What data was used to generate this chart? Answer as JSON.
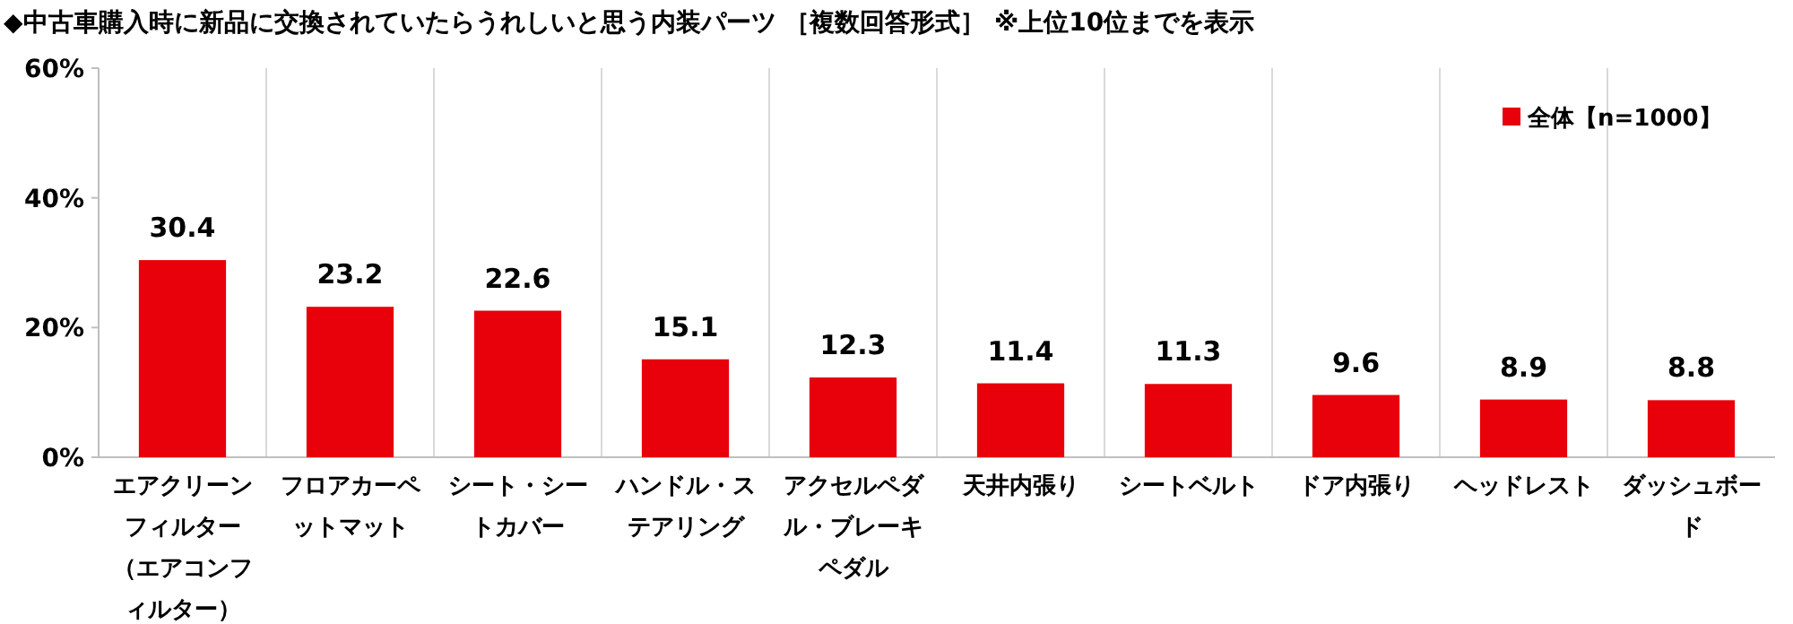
{
  "chart_data": {
    "type": "bar",
    "title": "◆中古車購入時に新品に交換されていたらうれしいと思う内装パーツ ［複数回答形式］ ※上位10位までを表示",
    "categories": [
      "エアクリーンフィルター（エアコンフィルター）",
      "フロアカーペットマット",
      "シート・シートカバー",
      "ハンドル・ステアリング",
      "アクセルペダル・ブレーキペダル",
      "天井内張り",
      "シートベルト",
      "ドア内張り",
      "ヘッドレスト",
      "ダッシュボード"
    ],
    "series": [
      {
        "name": "全体【n=1000】",
        "color": "#e8000b",
        "values": [
          30.4,
          23.2,
          22.6,
          15.1,
          12.3,
          11.4,
          11.3,
          9.6,
          8.9,
          8.8
        ]
      }
    ],
    "ylim": [
      0,
      60
    ],
    "yticks": [
      {
        "value": 0,
        "label": "0%"
      },
      {
        "value": 20,
        "label": "20%"
      },
      {
        "value": 40,
        "label": "40%"
      },
      {
        "value": 60,
        "label": "60%"
      }
    ],
    "data_labels": true,
    "legend": "top right",
    "grid": "x"
  }
}
